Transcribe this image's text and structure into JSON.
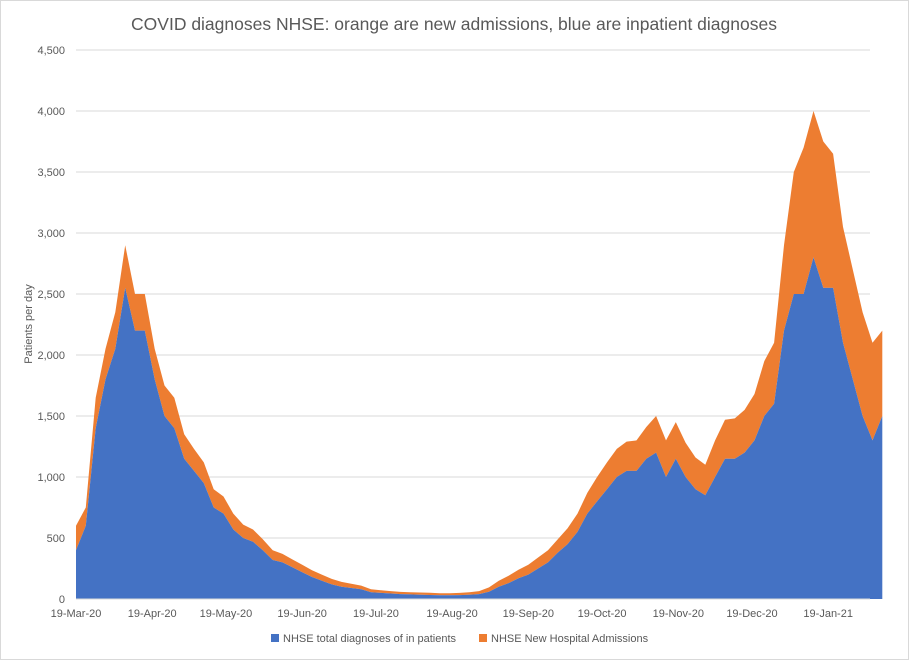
{
  "chart_data": {
    "type": "area",
    "stacked": true,
    "title": "COVID diagnoses NHSE: orange are new admissions, blue are inpatient diagnoses",
    "xlabel": "",
    "ylabel": "Patients per day",
    "ylim": [
      0,
      4500
    ],
    "y_ticks": [
      0,
      500,
      1000,
      1500,
      2000,
      2500,
      3000,
      3500,
      4000,
      4500
    ],
    "y_tick_labels": [
      "0",
      "500",
      "1,000",
      "1,500",
      "2,000",
      "2,500",
      "3,000",
      "3,500",
      "4,000",
      "4,500"
    ],
    "x_tick_labels": [
      "19-Mar-20",
      "19-Apr-20",
      "19-May-20",
      "19-Jun-20",
      "19-Jul-20",
      "19-Aug-20",
      "19-Sep-20",
      "19-Oct-20",
      "19-Nov-20",
      "19-Dec-20",
      "19-Jan-21"
    ],
    "x_range": [
      "19-Mar-20",
      "5-Feb-21"
    ],
    "grid": "horizontal",
    "legend_position": "bottom",
    "series": [
      {
        "name": "NHSE total diagnoses of in patients",
        "color": "#4472C4",
        "sample_interval_days": 4,
        "x_start": "19-Mar-20",
        "values": [
          400,
          600,
          1400,
          1800,
          2050,
          2550,
          2200,
          2200,
          1800,
          1500,
          1400,
          1150,
          1050,
          950,
          750,
          700,
          570,
          500,
          470,
          400,
          320,
          300,
          260,
          220,
          180,
          150,
          120,
          100,
          90,
          80,
          55,
          50,
          45,
          40,
          38,
          35,
          33,
          30,
          30,
          32,
          35,
          40,
          60,
          100,
          130,
          170,
          200,
          250,
          300,
          380,
          450,
          550,
          700,
          800,
          900,
          1000,
          1050,
          1050,
          1150,
          1200,
          1000,
          1150,
          1000,
          900,
          850,
          1000,
          1150,
          1150,
          1200,
          1300,
          1500,
          1600,
          2200,
          2500,
          2500,
          2800,
          2550,
          2550,
          2100,
          1800,
          1500,
          1300,
          1500
        ]
      },
      {
        "name": "NHSE New Hospital Admissions",
        "color": "#ED7D31",
        "sample_interval_days": 4,
        "x_start": "19-Mar-20",
        "values": [
          200,
          150,
          250,
          250,
          300,
          350,
          300,
          300,
          250,
          250,
          250,
          200,
          180,
          170,
          150,
          140,
          130,
          110,
          100,
          90,
          80,
          70,
          65,
          60,
          55,
          50,
          45,
          40,
          35,
          30,
          25,
          22,
          20,
          18,
          18,
          18,
          18,
          17,
          17,
          18,
          20,
          25,
          35,
          50,
          60,
          70,
          80,
          90,
          100,
          110,
          130,
          150,
          170,
          200,
          220,
          230,
          240,
          250,
          260,
          300,
          300,
          300,
          280,
          260,
          250,
          300,
          320,
          330,
          350,
          380,
          450,
          500,
          700,
          1000,
          1200,
          1200,
          1200,
          1100,
          950,
          900,
          850,
          800,
          700
        ]
      }
    ]
  }
}
